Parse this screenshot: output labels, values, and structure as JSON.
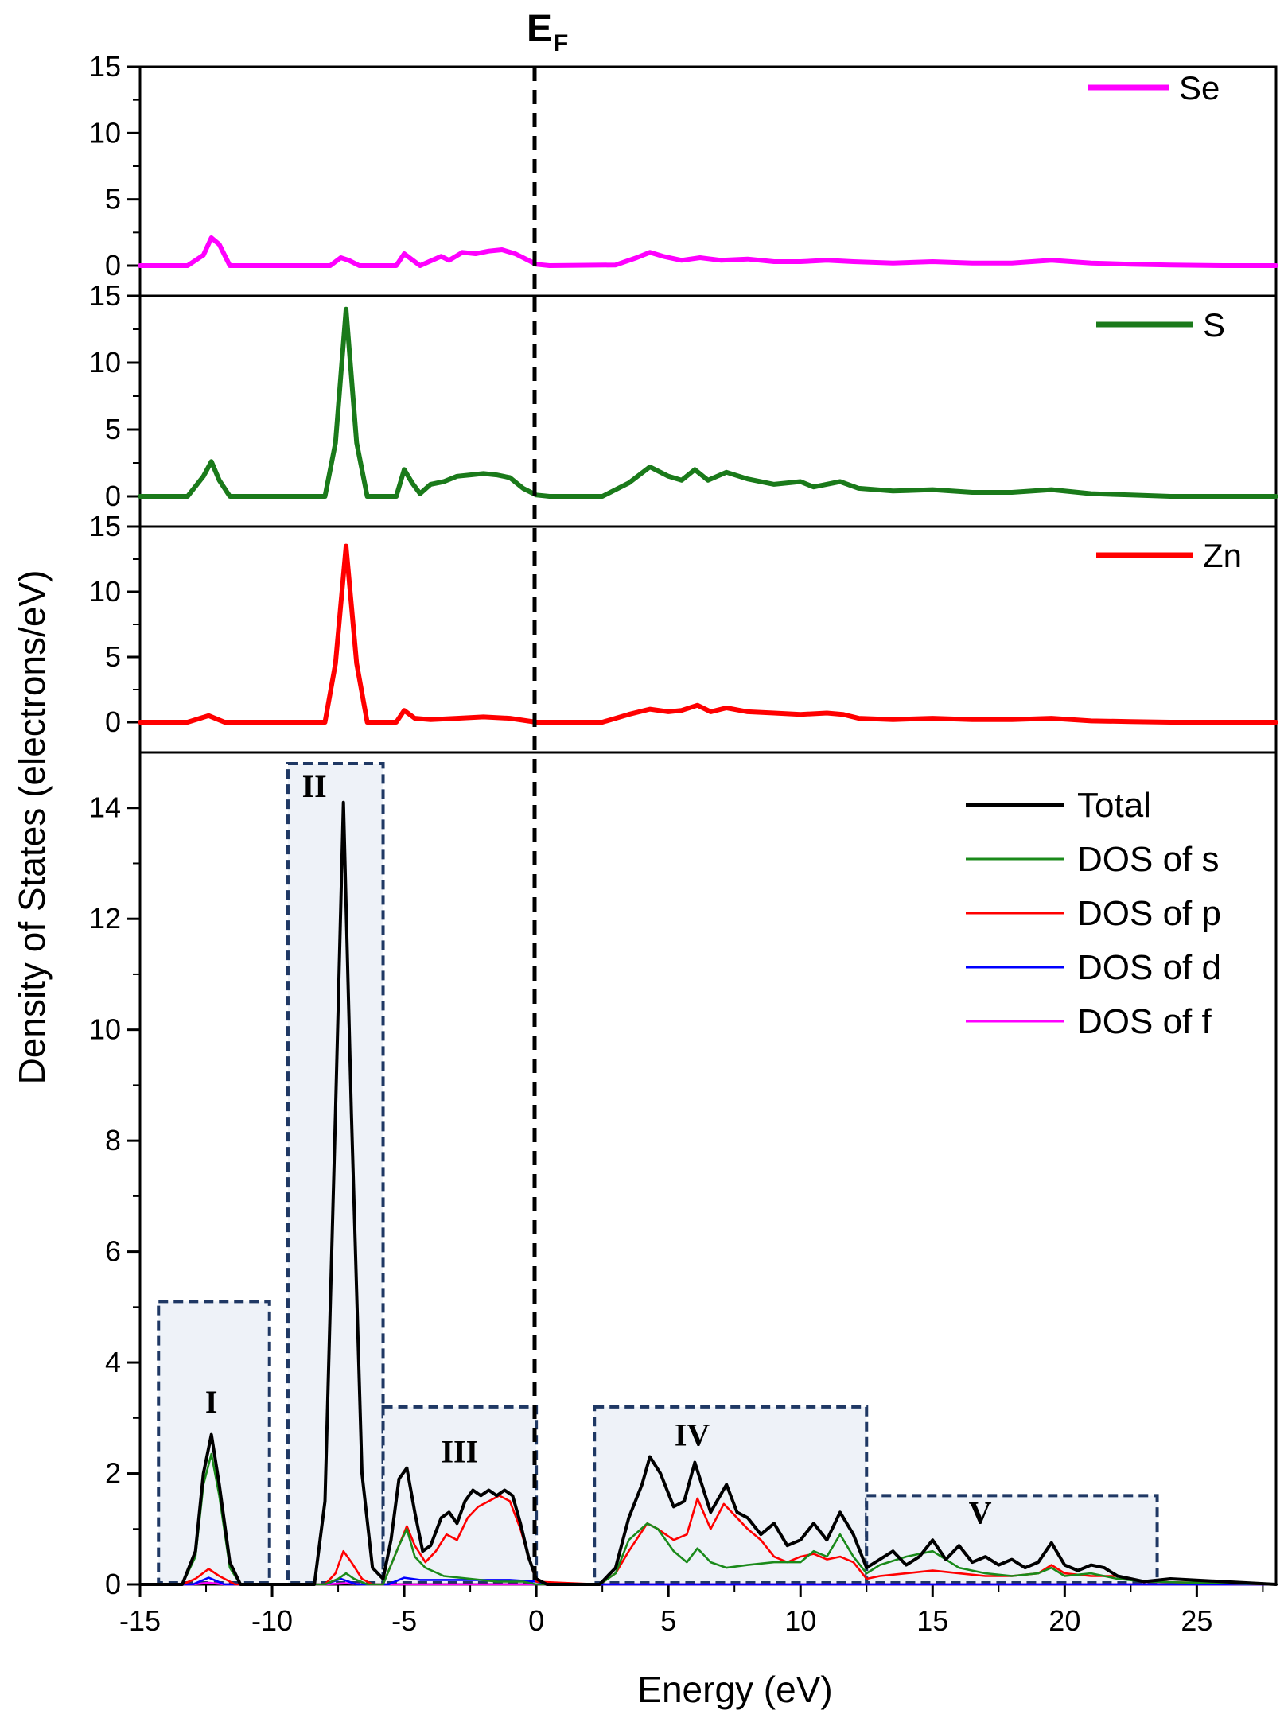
{
  "figure": {
    "fermi_label": "E",
    "fermi_subscript": "F",
    "y_axis_title": "Density of States (electrons/eV)",
    "x_axis_title": "Energy (eV)",
    "fermi_energy": 0
  },
  "colors": {
    "Se": "#ff00ff",
    "S": "#1a7a1a",
    "Zn": "#ff0000",
    "total": "#000000",
    "s": "#1a8a1a",
    "p": "#ff0000",
    "d": "#0000ff",
    "f": "#ff00ff",
    "box_border": "#1f3864",
    "box_fill": "#eef2f8"
  },
  "chart_data": [
    {
      "type": "line",
      "panel": "Se",
      "xlim": [
        -15,
        28
      ],
      "ylim": [
        0,
        15
      ],
      "yticks": [
        0,
        5,
        10,
        15
      ],
      "legend": "top-right",
      "series": [
        {
          "name": "Se",
          "x": [
            -15,
            -13.2,
            -12.6,
            -12.3,
            -12,
            -11.6,
            -7.8,
            -7.4,
            -7.1,
            -6.7,
            -5.3,
            -5,
            -4.8,
            -4.4,
            -3.6,
            -3.3,
            -2.8,
            -2.3,
            -1.8,
            -1.3,
            -0.8,
            -0.3,
            0,
            0.5,
            3,
            3.8,
            4.3,
            4.8,
            5.5,
            6.2,
            7,
            8,
            9,
            10,
            11,
            12,
            13.5,
            15,
            16.5,
            18,
            19.5,
            21,
            22.5,
            24,
            26,
            28
          ],
          "y": [
            0,
            0,
            0.8,
            2.1,
            1.6,
            0,
            0,
            0.6,
            0.4,
            0,
            0,
            0.9,
            0.6,
            0,
            0.7,
            0.4,
            1.0,
            0.9,
            1.1,
            1.2,
            0.9,
            0.4,
            0.1,
            0,
            0.05,
            0.6,
            1.0,
            0.7,
            0.4,
            0.6,
            0.4,
            0.5,
            0.3,
            0.3,
            0.4,
            0.3,
            0.2,
            0.3,
            0.2,
            0.2,
            0.4,
            0.2,
            0.1,
            0.05,
            0,
            0
          ]
        }
      ]
    },
    {
      "type": "line",
      "panel": "S",
      "xlim": [
        -15,
        28
      ],
      "ylim": [
        0,
        15
      ],
      "yticks": [
        0,
        5,
        10,
        15
      ],
      "legend": "top-right",
      "series": [
        {
          "name": "S",
          "x": [
            -15,
            -13.2,
            -12.6,
            -12.3,
            -12,
            -11.6,
            -8,
            -7.6,
            -7.2,
            -6.8,
            -6.4,
            -5.3,
            -5,
            -4.7,
            -4.4,
            -4,
            -3.5,
            -3,
            -2.5,
            -2,
            -1.5,
            -1,
            -0.5,
            0,
            0.5,
            2.5,
            3.5,
            4.3,
            5,
            5.5,
            6,
            6.5,
            7.2,
            8,
            9,
            10,
            10.5,
            11.5,
            12.2,
            13.5,
            15,
            16.5,
            18,
            19.5,
            21,
            22.5,
            24,
            28
          ],
          "y": [
            0,
            0,
            1.5,
            2.6,
            1.2,
            0,
            0,
            4.0,
            14.0,
            4.0,
            0,
            0,
            2.0,
            1.0,
            0.2,
            0.9,
            1.1,
            1.5,
            1.6,
            1.7,
            1.6,
            1.4,
            0.6,
            0.1,
            0,
            0,
            1.0,
            2.2,
            1.5,
            1.2,
            2.0,
            1.2,
            1.8,
            1.3,
            0.9,
            1.1,
            0.7,
            1.1,
            0.6,
            0.4,
            0.5,
            0.3,
            0.3,
            0.5,
            0.2,
            0.1,
            0,
            0
          ]
        }
      ]
    },
    {
      "type": "line",
      "panel": "Zn",
      "xlim": [
        -15,
        28
      ],
      "ylim": [
        0,
        15
      ],
      "yticks": [
        0,
        5,
        10,
        15
      ],
      "legend": "top-right",
      "series": [
        {
          "name": "Zn",
          "x": [
            -15,
            -13.2,
            -12.4,
            -11.8,
            -8,
            -7.6,
            -7.2,
            -6.8,
            -6.4,
            -5.3,
            -5,
            -4.6,
            -4,
            -3,
            -2,
            -1,
            0,
            0.5,
            2.5,
            3.5,
            4.3,
            5,
            5.5,
            6.1,
            6.6,
            7.2,
            8,
            9,
            10,
            11,
            11.6,
            12.2,
            13.5,
            15,
            16.5,
            18,
            19.5,
            21,
            22.5,
            24,
            28
          ],
          "y": [
            0,
            0,
            0.5,
            0,
            0,
            4.5,
            13.5,
            4.5,
            0,
            0,
            0.9,
            0.3,
            0.2,
            0.3,
            0.4,
            0.3,
            0,
            0,
            0,
            0.6,
            1.0,
            0.8,
            0.9,
            1.3,
            0.8,
            1.1,
            0.8,
            0.7,
            0.6,
            0.7,
            0.6,
            0.3,
            0.2,
            0.3,
            0.2,
            0.2,
            0.3,
            0.1,
            0.05,
            0,
            0
          ]
        }
      ]
    },
    {
      "type": "line",
      "panel": "Total",
      "xlim": [
        -15,
        28
      ],
      "ylim": [
        0,
        15
      ],
      "yticks": [
        0,
        2,
        4,
        6,
        8,
        10,
        12,
        14
      ],
      "xticks": [
        -15,
        -10,
        -5,
        0,
        5,
        10,
        15,
        20,
        25
      ],
      "xlabel": "Energy (eV)",
      "ylabel": "Density of States (electrons/eV)",
      "legend": "top-right",
      "series": [
        {
          "name": "Total",
          "x": [
            -15,
            -13.4,
            -12.9,
            -12.6,
            -12.3,
            -12.0,
            -11.6,
            -11.2,
            -8.4,
            -8.0,
            -7.6,
            -7.3,
            -7.0,
            -6.6,
            -6.2,
            -5.8,
            -5.5,
            -5.2,
            -4.9,
            -4.6,
            -4.3,
            -4.0,
            -3.6,
            -3.3,
            -3.0,
            -2.7,
            -2.4,
            -2.1,
            -1.8,
            -1.5,
            -1.2,
            -0.9,
            -0.6,
            -0.3,
            0,
            0.4,
            2.4,
            3.0,
            3.5,
            4.0,
            4.3,
            4.7,
            5.2,
            5.6,
            6.0,
            6.2,
            6.6,
            7.2,
            7.6,
            8.0,
            8.5,
            9.0,
            9.5,
            10.0,
            10.5,
            11.0,
            11.5,
            12.0,
            12.5,
            13.0,
            13.5,
            14.0,
            14.5,
            15.0,
            15.5,
            16.0,
            16.5,
            17.0,
            17.5,
            18.0,
            18.5,
            19.0,
            19.5,
            20.0,
            20.5,
            21.0,
            21.5,
            22.0,
            23.0,
            24.0,
            28
          ],
          "y": [
            0,
            0,
            0.6,
            2.0,
            2.7,
            1.8,
            0.4,
            0,
            0,
            1.5,
            8.5,
            14.1,
            8.5,
            2.0,
            0.3,
            0.1,
            0.8,
            1.9,
            2.1,
            1.3,
            0.6,
            0.7,
            1.2,
            1.3,
            1.1,
            1.5,
            1.7,
            1.6,
            1.7,
            1.6,
            1.7,
            1.6,
            1.1,
            0.5,
            0.1,
            0,
            0,
            0.3,
            1.2,
            1.8,
            2.3,
            2.0,
            1.4,
            1.5,
            2.2,
            1.9,
            1.3,
            1.8,
            1.3,
            1.2,
            0.9,
            1.1,
            0.7,
            0.8,
            1.1,
            0.8,
            1.3,
            0.9,
            0.3,
            0.45,
            0.6,
            0.35,
            0.5,
            0.8,
            0.45,
            0.7,
            0.4,
            0.5,
            0.35,
            0.45,
            0.3,
            0.4,
            0.75,
            0.35,
            0.25,
            0.35,
            0.3,
            0.15,
            0.05,
            0.1,
            0
          ]
        },
        {
          "name": "DOS of s",
          "x": [
            -15,
            -13.4,
            -12.9,
            -12.6,
            -12.3,
            -12.0,
            -11.6,
            -11.2,
            -8.0,
            -7.5,
            -7.2,
            -6.9,
            -6.4,
            -5.8,
            -5.2,
            -4.9,
            -4.6,
            -4.2,
            -3.5,
            -2.5,
            -1.5,
            -0.5,
            0,
            2.4,
            3.0,
            3.5,
            4.2,
            4.6,
            5.2,
            5.7,
            6.1,
            6.6,
            7.2,
            8.0,
            9.0,
            10.0,
            10.5,
            11.0,
            11.5,
            12.0,
            12.5,
            13.0,
            14.0,
            15.0,
            16.0,
            17.0,
            18.0,
            19.0,
            19.5,
            20.0,
            21.0,
            22.0,
            23.0,
            28
          ],
          "y": [
            0,
            0,
            0.5,
            1.8,
            2.35,
            1.6,
            0.3,
            0,
            0,
            0.1,
            0.2,
            0.1,
            0,
            0,
            0.7,
            1.0,
            0.5,
            0.3,
            0.15,
            0.1,
            0.05,
            0.05,
            0,
            0,
            0.2,
            0.8,
            1.1,
            1.0,
            0.6,
            0.4,
            0.65,
            0.4,
            0.3,
            0.35,
            0.4,
            0.4,
            0.6,
            0.5,
            0.9,
            0.5,
            0.2,
            0.35,
            0.5,
            0.6,
            0.3,
            0.2,
            0.15,
            0.2,
            0.3,
            0.15,
            0.2,
            0.1,
            0.05,
            0
          ]
        },
        {
          "name": "DOS of p",
          "x": [
            -15,
            -13.4,
            -12.9,
            -12.4,
            -12.0,
            -11.4,
            -8.0,
            -7.6,
            -7.3,
            -7.0,
            -6.6,
            -6.2,
            -5.8,
            -5.2,
            -4.9,
            -4.6,
            -4.2,
            -3.8,
            -3.4,
            -3.0,
            -2.6,
            -2.2,
            -1.8,
            -1.4,
            -1.0,
            -0.6,
            -0.3,
            0,
            2.4,
            3.0,
            3.5,
            4.2,
            4.6,
            5.2,
            5.7,
            6.1,
            6.6,
            7.1,
            7.6,
            8.0,
            8.5,
            9.0,
            9.5,
            10.0,
            10.5,
            11.0,
            11.5,
            12.0,
            12.5,
            13.0,
            14.0,
            15.0,
            16.0,
            17.0,
            18.0,
            19.0,
            19.5,
            20.0,
            21.0,
            22.0,
            23.0,
            28
          ],
          "y": [
            0,
            0,
            0.1,
            0.28,
            0.15,
            0,
            0,
            0.2,
            0.6,
            0.4,
            0.1,
            0,
            0,
            0.7,
            1.05,
            0.7,
            0.4,
            0.6,
            0.9,
            0.8,
            1.2,
            1.4,
            1.5,
            1.6,
            1.5,
            1.0,
            0.5,
            0.05,
            0,
            0.2,
            0.6,
            1.1,
            1.0,
            0.8,
            0.9,
            1.55,
            1.0,
            1.45,
            1.2,
            1.0,
            0.8,
            0.5,
            0.4,
            0.5,
            0.55,
            0.45,
            0.5,
            0.4,
            0.1,
            0.15,
            0.2,
            0.25,
            0.2,
            0.15,
            0.15,
            0.2,
            0.35,
            0.2,
            0.15,
            0.15,
            0.05,
            0
          ]
        },
        {
          "name": "DOS of d",
          "x": [
            -15,
            -13.0,
            -12.4,
            -11.8,
            -8.0,
            -7.4,
            -6.8,
            -5.6,
            -5.0,
            -4.4,
            -3.0,
            -1.0,
            0,
            0.5,
            28
          ],
          "y": [
            0,
            0,
            0.12,
            0,
            0,
            0.1,
            0,
            0,
            0.12,
            0.08,
            0.08,
            0.08,
            0.05,
            0,
            0
          ]
        },
        {
          "name": "DOS of f",
          "x": [
            -15,
            -13.0,
            -12.4,
            -11.8,
            -8.0,
            -7.2,
            -6.6,
            0,
            28
          ],
          "y": [
            0,
            0,
            0.03,
            0,
            0,
            0.02,
            0,
            0,
            0
          ]
        }
      ],
      "regions": [
        {
          "label": "I",
          "x0": -14.3,
          "x1": -10.1,
          "ytop": 5.1
        },
        {
          "label": "II",
          "x0": -9.4,
          "x1": -5.8,
          "ytop": 14.8
        },
        {
          "label": "III",
          "x0": -5.8,
          "x1": 0,
          "ytop": 3.2
        },
        {
          "label": "IV",
          "x0": 2.2,
          "x1": 12.5,
          "ytop": 3.2
        },
        {
          "label": "V",
          "x0": 12.5,
          "x1": 23.5,
          "ytop": 1.6
        }
      ]
    }
  ]
}
